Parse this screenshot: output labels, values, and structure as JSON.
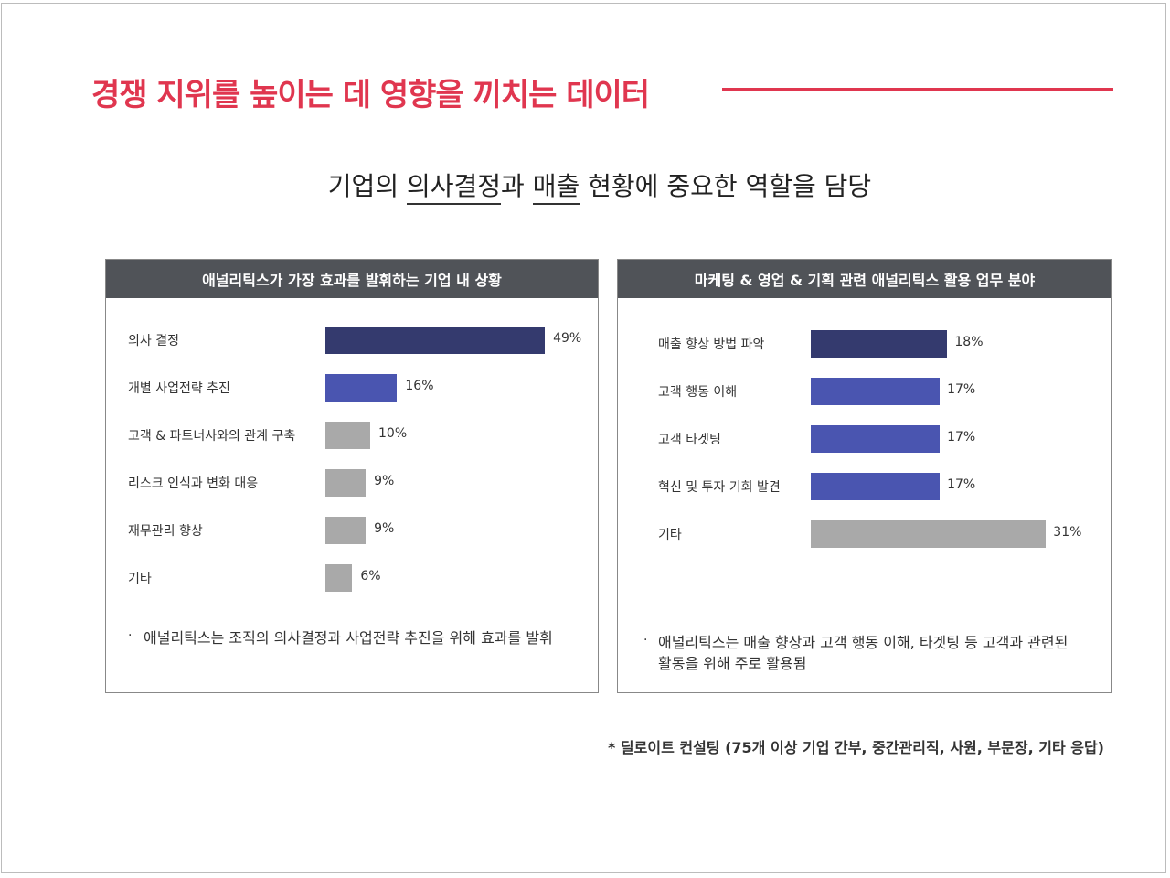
{
  "header": {
    "title": "경쟁 지위를 높이는 데 영향을 끼치는 데이터",
    "subtitle_pre": "기업의 ",
    "subtitle_u1": "의사결정",
    "subtitle_mid": "과 ",
    "subtitle_u2": "매출",
    "subtitle_post": " 현황에 중요한 역할을 담당"
  },
  "colors": {
    "accent": "#e0364f",
    "header_bg": "#505358",
    "dark_navy": "#343a6e",
    "blue": "#4a55b0",
    "gray": "#a9a9a9"
  },
  "chart_data": [
    {
      "type": "bar",
      "orientation": "horizontal",
      "title": "애널리틱스가 가장 효과를 발휘하는 기업 내 상황",
      "categories": [
        "의사 결정",
        "개별 사업전략 추진",
        "고객 & 파트너사와의 관계 구축",
        "리스크 인식과 변화 대응",
        "재무관리 향상",
        "기타"
      ],
      "values": [
        49,
        16,
        10,
        9,
        9,
        6
      ],
      "labels": [
        "49%",
        "16%",
        "10%",
        "9%",
        "9%",
        "6%"
      ],
      "bar_colors": [
        "#343a6e",
        "#4a55b0",
        "#a9a9a9",
        "#a9a9a9",
        "#a9a9a9",
        "#a9a9a9"
      ],
      "unit": "%"
    },
    {
      "type": "bar",
      "orientation": "horizontal",
      "title": "마케팅 & 영업 & 기획 관련 애널리틱스 활용 업무 분야",
      "categories": [
        "매출 향상 방법 파악",
        "고객 행동 이해",
        "고객 타겟팅",
        "혁신 및 투자 기회 발견",
        "기타"
      ],
      "values": [
        18,
        17,
        17,
        17,
        31
      ],
      "labels": [
        "18%",
        "17%",
        "17%",
        "17%",
        "31%"
      ],
      "bar_colors": [
        "#343a6e",
        "#4a55b0",
        "#4a55b0",
        "#4a55b0",
        "#a9a9a9"
      ],
      "unit": "%"
    }
  ],
  "notes": {
    "left": "애널리틱스는 조직의 의사결정과 사업전략 추진을 위해 효과를 발휘",
    "right_line1": "애널리틱스는 매출 향상과 고객 행동 이해, 타겟팅 등 고객과 관련된",
    "right_line2": "활동을 위해 주로 활용됨",
    "bullet": "·"
  },
  "source": "* 딜로이트 컨설팅 (75개 이상 기업 간부, 중간관리직, 사원, 부문장, 기타 응답)"
}
